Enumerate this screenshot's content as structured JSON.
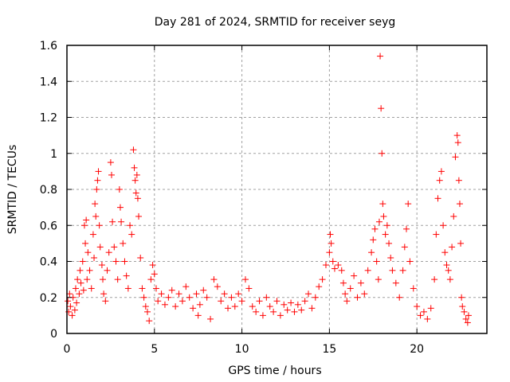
{
  "chart_data": {
    "type": "scatter",
    "title": "Day 281 of 2024, SRMTID for receiver seyg",
    "xlabel": "GPS time / hours",
    "ylabel": "SRMTID / TECUs",
    "xlim": [
      0,
      24
    ],
    "ylim": [
      0,
      1.6
    ],
    "xticks": [
      0,
      5,
      10,
      15,
      20
    ],
    "xtick_labels": [
      "0",
      "5",
      "10",
      "15",
      "20"
    ],
    "yticks": [
      0,
      0.2,
      0.4,
      0.6,
      0.8,
      1,
      1.2,
      1.4,
      1.6
    ],
    "ytick_labels": [
      "0",
      "0.2",
      "0.4",
      "0.6",
      "0.8",
      "1",
      "1.2",
      "1.4",
      "1.6"
    ],
    "grid": true,
    "marker": "plus",
    "color": "#ff0000",
    "series": [
      {
        "name": "SRMTID",
        "points": [
          [
            0.05,
            0.18
          ],
          [
            0.1,
            0.12
          ],
          [
            0.15,
            0.22
          ],
          [
            0.2,
            0.15
          ],
          [
            0.3,
            0.1
          ],
          [
            0.35,
            0.2
          ],
          [
            0.45,
            0.13
          ],
          [
            0.5,
            0.25
          ],
          [
            0.55,
            0.17
          ],
          [
            0.6,
            0.3
          ],
          [
            0.7,
            0.22
          ],
          [
            0.75,
            0.35
          ],
          [
            0.8,
            0.28
          ],
          [
            0.9,
            0.4
          ],
          [
            0.95,
            0.24
          ],
          [
            1.0,
            0.6
          ],
          [
            1.05,
            0.5
          ],
          [
            1.1,
            0.63
          ],
          [
            1.15,
            0.3
          ],
          [
            1.2,
            0.45
          ],
          [
            1.3,
            0.35
          ],
          [
            1.4,
            0.25
          ],
          [
            1.5,
            0.55
          ],
          [
            1.55,
            0.42
          ],
          [
            1.6,
            0.72
          ],
          [
            1.65,
            0.65
          ],
          [
            1.7,
            0.8
          ],
          [
            1.75,
            0.85
          ],
          [
            1.8,
            0.9
          ],
          [
            1.85,
            0.6
          ],
          [
            1.9,
            0.48
          ],
          [
            2.0,
            0.38
          ],
          [
            2.05,
            0.3
          ],
          [
            2.1,
            0.22
          ],
          [
            2.2,
            0.18
          ],
          [
            2.3,
            0.35
          ],
          [
            2.4,
            0.45
          ],
          [
            2.5,
            0.95
          ],
          [
            2.55,
            0.88
          ],
          [
            2.6,
            0.62
          ],
          [
            2.7,
            0.48
          ],
          [
            2.8,
            0.4
          ],
          [
            2.9,
            0.3
          ],
          [
            3.0,
            0.8
          ],
          [
            3.05,
            0.7
          ],
          [
            3.1,
            0.62
          ],
          [
            3.2,
            0.5
          ],
          [
            3.3,
            0.4
          ],
          [
            3.4,
            0.32
          ],
          [
            3.5,
            0.25
          ],
          [
            3.6,
            0.6
          ],
          [
            3.7,
            0.55
          ],
          [
            3.8,
            1.02
          ],
          [
            3.85,
            0.92
          ],
          [
            3.9,
            0.85
          ],
          [
            3.95,
            0.78
          ],
          [
            4.0,
            0.88
          ],
          [
            4.05,
            0.75
          ],
          [
            4.1,
            0.65
          ],
          [
            4.2,
            0.42
          ],
          [
            4.3,
            0.25
          ],
          [
            4.4,
            0.2
          ],
          [
            4.5,
            0.15
          ],
          [
            4.6,
            0.12
          ],
          [
            4.7,
            0.07
          ],
          [
            4.8,
            0.3
          ],
          [
            4.9,
            0.38
          ],
          [
            5.0,
            0.33
          ],
          [
            5.1,
            0.25
          ],
          [
            5.2,
            0.18
          ],
          [
            5.4,
            0.22
          ],
          [
            5.6,
            0.16
          ],
          [
            5.8,
            0.2
          ],
          [
            6.0,
            0.24
          ],
          [
            6.2,
            0.15
          ],
          [
            6.4,
            0.22
          ],
          [
            6.6,
            0.18
          ],
          [
            6.8,
            0.26
          ],
          [
            7.0,
            0.2
          ],
          [
            7.2,
            0.14
          ],
          [
            7.4,
            0.22
          ],
          [
            7.5,
            0.1
          ],
          [
            7.6,
            0.16
          ],
          [
            7.8,
            0.24
          ],
          [
            8.0,
            0.2
          ],
          [
            8.2,
            0.08
          ],
          [
            8.4,
            0.3
          ],
          [
            8.6,
            0.26
          ],
          [
            8.8,
            0.18
          ],
          [
            9.0,
            0.22
          ],
          [
            9.2,
            0.14
          ],
          [
            9.4,
            0.2
          ],
          [
            9.6,
            0.15
          ],
          [
            9.8,
            0.22
          ],
          [
            10.0,
            0.18
          ],
          [
            10.2,
            0.3
          ],
          [
            10.4,
            0.25
          ],
          [
            10.6,
            0.15
          ],
          [
            10.8,
            0.12
          ],
          [
            11.0,
            0.18
          ],
          [
            11.2,
            0.1
          ],
          [
            11.4,
            0.2
          ],
          [
            11.6,
            0.15
          ],
          [
            11.8,
            0.12
          ],
          [
            12.0,
            0.18
          ],
          [
            12.2,
            0.1
          ],
          [
            12.4,
            0.16
          ],
          [
            12.6,
            0.13
          ],
          [
            12.8,
            0.17
          ],
          [
            13.0,
            0.12
          ],
          [
            13.2,
            0.16
          ],
          [
            13.4,
            0.13
          ],
          [
            13.6,
            0.18
          ],
          [
            13.8,
            0.22
          ],
          [
            14.0,
            0.14
          ],
          [
            14.2,
            0.2
          ],
          [
            14.4,
            0.26
          ],
          [
            14.6,
            0.3
          ],
          [
            14.8,
            0.38
          ],
          [
            15.0,
            0.45
          ],
          [
            15.05,
            0.55
          ],
          [
            15.1,
            0.5
          ],
          [
            15.2,
            0.4
          ],
          [
            15.3,
            0.36
          ],
          [
            15.5,
            0.38
          ],
          [
            15.7,
            0.35
          ],
          [
            15.8,
            0.28
          ],
          [
            15.9,
            0.22
          ],
          [
            16.0,
            0.18
          ],
          [
            16.2,
            0.25
          ],
          [
            16.4,
            0.32
          ],
          [
            16.6,
            0.2
          ],
          [
            16.8,
            0.28
          ],
          [
            17.0,
            0.22
          ],
          [
            17.2,
            0.35
          ],
          [
            17.4,
            0.45
          ],
          [
            17.5,
            0.52
          ],
          [
            17.6,
            0.58
          ],
          [
            17.7,
            0.4
          ],
          [
            17.8,
            0.3
          ],
          [
            17.85,
            0.62
          ],
          [
            17.9,
            1.54
          ],
          [
            17.95,
            1.25
          ],
          [
            18.0,
            1.0
          ],
          [
            18.05,
            0.72
          ],
          [
            18.1,
            0.65
          ],
          [
            18.2,
            0.55
          ],
          [
            18.3,
            0.6
          ],
          [
            18.4,
            0.5
          ],
          [
            18.5,
            0.42
          ],
          [
            18.6,
            0.35
          ],
          [
            18.8,
            0.28
          ],
          [
            19.0,
            0.2
          ],
          [
            19.2,
            0.35
          ],
          [
            19.3,
            0.48
          ],
          [
            19.4,
            0.58
          ],
          [
            19.5,
            0.72
          ],
          [
            19.6,
            0.4
          ],
          [
            19.8,
            0.25
          ],
          [
            20.0,
            0.15
          ],
          [
            20.2,
            0.1
          ],
          [
            20.4,
            0.12
          ],
          [
            20.6,
            0.08
          ],
          [
            20.8,
            0.14
          ],
          [
            21.0,
            0.3
          ],
          [
            21.1,
            0.55
          ],
          [
            21.2,
            0.75
          ],
          [
            21.3,
            0.85
          ],
          [
            21.4,
            0.9
          ],
          [
            21.5,
            0.6
          ],
          [
            21.6,
            0.45
          ],
          [
            21.7,
            0.38
          ],
          [
            21.8,
            0.35
          ],
          [
            21.9,
            0.3
          ],
          [
            22.0,
            0.48
          ],
          [
            22.1,
            0.65
          ],
          [
            22.2,
            0.98
          ],
          [
            22.3,
            1.1
          ],
          [
            22.35,
            1.06
          ],
          [
            22.4,
            0.85
          ],
          [
            22.45,
            0.72
          ],
          [
            22.5,
            0.5
          ],
          [
            22.55,
            0.2
          ],
          [
            22.6,
            0.15
          ],
          [
            22.7,
            0.12
          ],
          [
            22.8,
            0.08
          ],
          [
            22.9,
            0.06
          ],
          [
            22.95,
            0.1
          ]
        ]
      }
    ]
  }
}
